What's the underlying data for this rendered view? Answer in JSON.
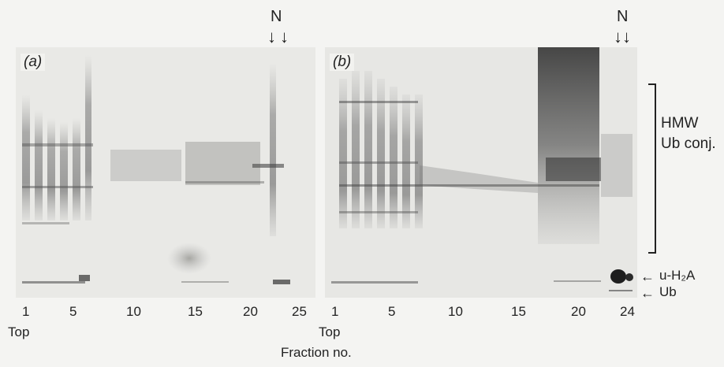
{
  "panel_a": {
    "label": "(a)",
    "marker": "N",
    "lane_numbers": [
      "1",
      "5",
      "10",
      "15",
      "20",
      "25"
    ],
    "top_label": "Top"
  },
  "panel_b": {
    "label": "(b)",
    "marker": "N",
    "lane_numbers": [
      "1",
      "5",
      "10",
      "15",
      "20",
      "24"
    ],
    "top_label": "Top"
  },
  "annotations": {
    "hmw_line1": "HMW",
    "hmw_line2": "Ub conj.",
    "uh2a": "u-H₂A",
    "ub": "Ub",
    "arrow_down": "↓",
    "arrow_left": "←"
  },
  "x_axis_label": "Fraction no.",
  "colors": {
    "gel_bg": "#e8e8e5",
    "band": "#4a4a48",
    "text": "#222222"
  }
}
